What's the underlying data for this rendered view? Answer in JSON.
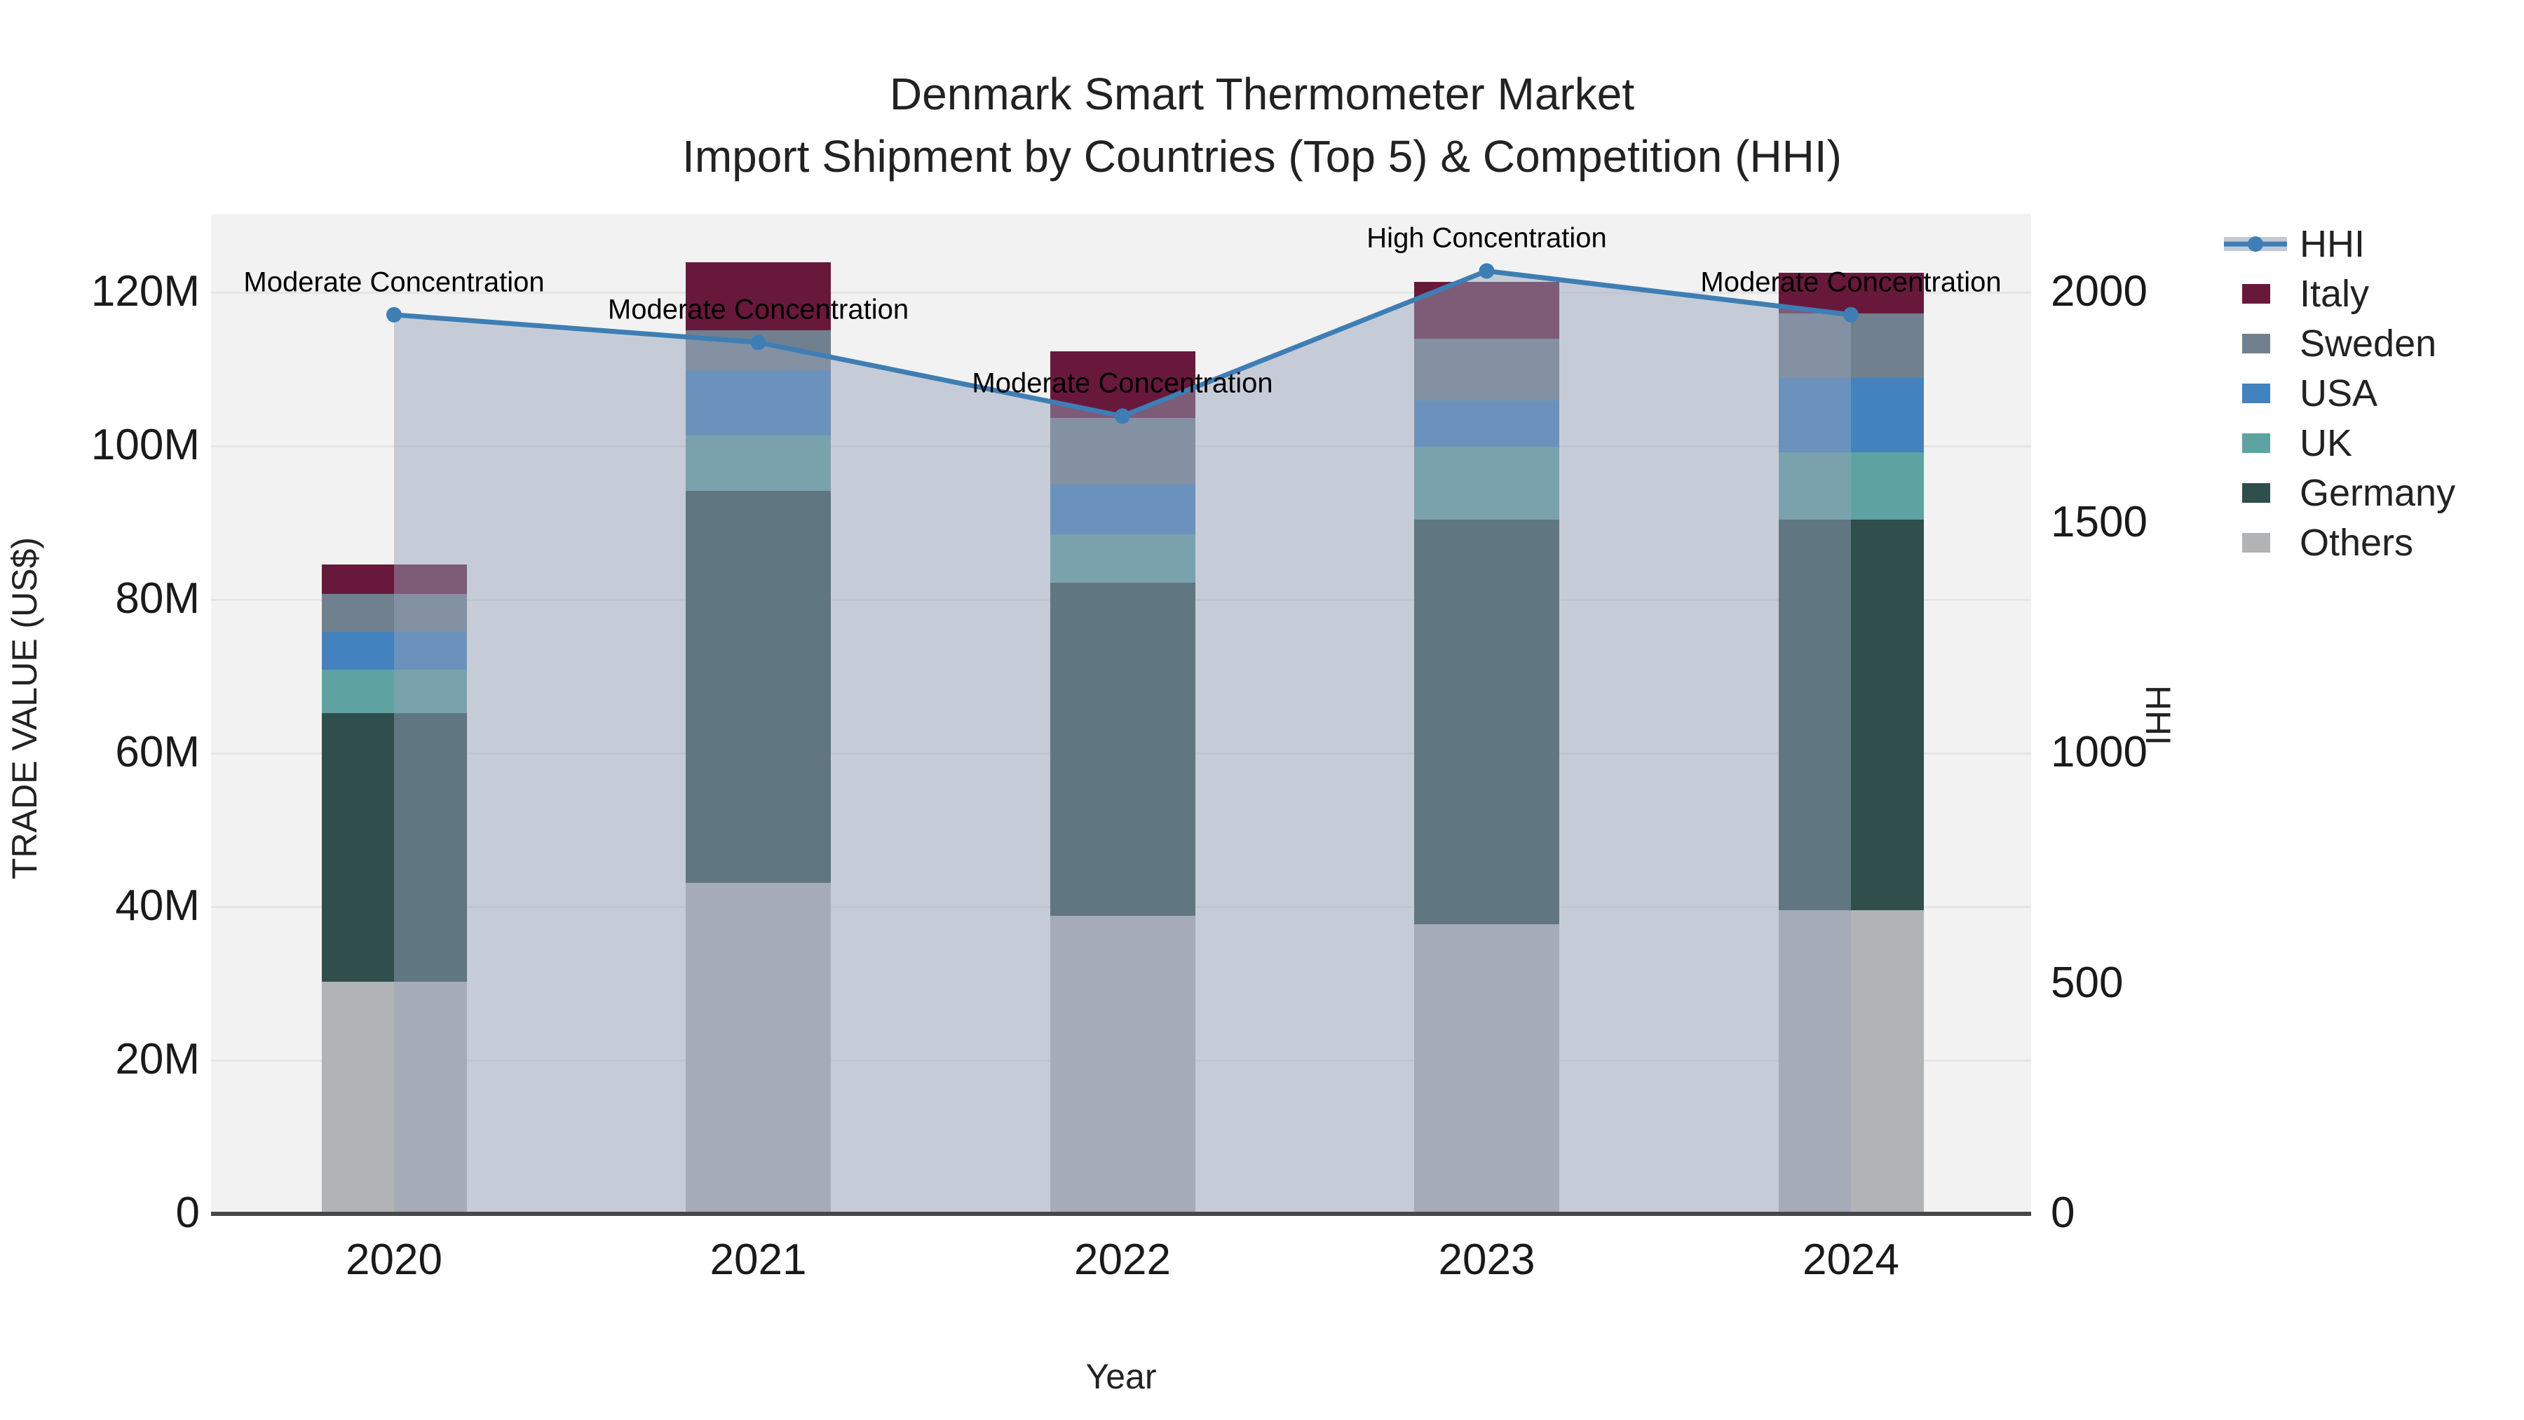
{
  "title": {
    "line1": "Denmark Smart Thermometer Market",
    "line2": "Import Shipment by Countries (Top 5) & Competition (HHI)"
  },
  "axes": {
    "x": {
      "title": "Year",
      "ticks": [
        "2020",
        "2021",
        "2022",
        "2023",
        "2024"
      ]
    },
    "y_left": {
      "title": "TRADE VALUE (US$)",
      "ticks": [
        "0",
        "20M",
        "40M",
        "60M",
        "80M",
        "100M",
        "120M"
      ],
      "tick_values_m": [
        0,
        20,
        40,
        60,
        80,
        100,
        120
      ]
    },
    "y_right": {
      "title": "HHI",
      "ticks": [
        "0",
        "500",
        "1000",
        "1500",
        "2000"
      ],
      "tick_values": [
        0,
        500,
        1000,
        1500,
        2000
      ]
    }
  },
  "legend": {
    "items": [
      {
        "label": "HHI",
        "kind": "line",
        "color": "#3E7EB4"
      },
      {
        "label": "Italy",
        "kind": "swatch",
        "color": "#68193B"
      },
      {
        "label": "Sweden",
        "kind": "swatch",
        "color": "#71808F"
      },
      {
        "label": "USA",
        "kind": "swatch",
        "color": "#4282BE"
      },
      {
        "label": "UK",
        "kind": "swatch",
        "color": "#5EA2A2"
      },
      {
        "label": "Germany",
        "kind": "swatch",
        "color": "#2F4E4C"
      },
      {
        "label": "Others",
        "kind": "swatch",
        "color": "#B2B3B4"
      }
    ]
  },
  "chart_data": {
    "type": "stacked-bar+line",
    "categories": [
      "2020",
      "2021",
      "2022",
      "2023",
      "2024"
    ],
    "stack_order": "bottom-to-top",
    "series": [
      {
        "name": "Others",
        "color": "#B2B3B4",
        "values": [
          30.2,
          43.1,
          38.8,
          37.7,
          39.5
        ]
      },
      {
        "name": "Germany",
        "color": "#2F4E4C",
        "values": [
          35.0,
          51.1,
          43.4,
          52.7,
          50.9
        ]
      },
      {
        "name": "UK",
        "color": "#5EA2A2",
        "values": [
          5.7,
          7.2,
          6.3,
          9.5,
          8.8
        ]
      },
      {
        "name": "USA",
        "color": "#4282BE",
        "values": [
          4.9,
          8.5,
          6.5,
          6.0,
          9.7
        ]
      },
      {
        "name": "Sweden",
        "color": "#71808F",
        "values": [
          4.9,
          5.2,
          8.7,
          8.1,
          8.4
        ]
      },
      {
        "name": "Italy",
        "color": "#68193B",
        "values": [
          3.9,
          8.8,
          8.6,
          7.4,
          5.3
        ]
      }
    ],
    "bar_totals_m": [
      84.6,
      123.9,
      112.3,
      121.4,
      122.6
    ],
    "line_series": {
      "name": "HHI",
      "axis": "right",
      "values": [
        1950,
        1890,
        1730,
        2045,
        1950
      ],
      "color": "#3E7EB4",
      "area_fill": "rgba(151,164,186,0.48)"
    },
    "annotations": [
      {
        "x": "2020",
        "text": "Moderate Concentration"
      },
      {
        "x": "2021",
        "text": "Moderate Concentration"
      },
      {
        "x": "2022",
        "text": "Moderate Concentration"
      },
      {
        "x": "2023",
        "text": "High Concentration"
      },
      {
        "x": "2024",
        "text": "Moderate Concentration"
      }
    ],
    "xlabel": "Year",
    "ylabel_left": "TRADE VALUE (US$)",
    "ylabel_right": "HHI",
    "ylim_left_m": [
      0,
      130
    ],
    "ylim_right": [
      0,
      2170
    ],
    "grid": "horizontal",
    "legend_position": "right"
  },
  "colors": {
    "plot_bg": "#F2F2F2",
    "grid": "#E4E5E7",
    "axis_line": "#474747",
    "hhi_line": "#3E7EB4",
    "hhi_fill": "rgba(151,164,186,0.48)",
    "text": "#1a1a1a"
  }
}
